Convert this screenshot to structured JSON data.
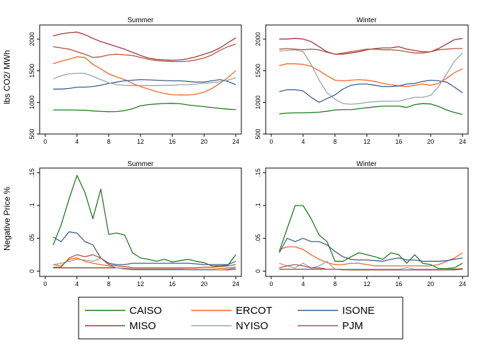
{
  "figure": {
    "legend_entries": [
      {
        "name": "CAISO",
        "color": "#1e7a1e"
      },
      {
        "name": "ERCOT",
        "color": "#f26522"
      },
      {
        "name": "ISONE",
        "color": "#3b5f8c"
      },
      {
        "name": "MISO",
        "color": "#9c3a3a"
      },
      {
        "name": "NYISO",
        "color": "#95a5a6"
      },
      {
        "name": "PJM",
        "color": "#b5523b"
      }
    ],
    "legend_placement": "bottom"
  },
  "chart_data": [
    {
      "type": "line",
      "title": "Summer",
      "ylabel": "lbs CO2/ MWh",
      "xlim": [
        0,
        24
      ],
      "ylim": [
        500,
        2200
      ],
      "xticks": [
        0,
        4,
        8,
        12,
        16,
        20,
        24
      ],
      "yticks": [
        500,
        1000,
        1500,
        2000
      ],
      "x": [
        1,
        2,
        3,
        4,
        5,
        6,
        7,
        8,
        9,
        10,
        11,
        12,
        13,
        14,
        15,
        16,
        17,
        18,
        19,
        20,
        21,
        22,
        23,
        24
      ],
      "series": [
        {
          "name": "CAISO",
          "color": "#1e7a1e",
          "values": [
            880,
            880,
            880,
            878,
            875,
            865,
            858,
            853,
            855,
            868,
            900,
            945,
            965,
            975,
            983,
            985,
            978,
            960,
            945,
            933,
            918,
            905,
            893,
            885
          ]
        },
        {
          "name": "ERCOT",
          "color": "#f26522",
          "values": [
            1610,
            1650,
            1680,
            1720,
            1710,
            1600,
            1530,
            1450,
            1400,
            1360,
            1300,
            1250,
            1210,
            1170,
            1140,
            1120,
            1118,
            1115,
            1130,
            1160,
            1220,
            1300,
            1390,
            1500
          ]
        },
        {
          "name": "ISONE",
          "color": "#3b5f8c",
          "values": [
            1210,
            1210,
            1220,
            1240,
            1240,
            1250,
            1270,
            1300,
            1320,
            1340,
            1350,
            1360,
            1355,
            1350,
            1345,
            1340,
            1340,
            1330,
            1320,
            1320,
            1340,
            1360,
            1330,
            1280
          ]
        },
        {
          "name": "MISO",
          "color": "#9c3a3a",
          "values": [
            2050,
            2080,
            2100,
            2110,
            2070,
            2010,
            1960,
            1920,
            1880,
            1840,
            1790,
            1740,
            1700,
            1680,
            1670,
            1665,
            1670,
            1690,
            1720,
            1760,
            1800,
            1860,
            1940,
            2020
          ]
        },
        {
          "name": "NYISO",
          "color": "#95a5a6",
          "values": [
            1370,
            1420,
            1450,
            1460,
            1460,
            1410,
            1360,
            1310,
            1280,
            1270,
            1265,
            1265,
            1265,
            1265,
            1270,
            1270,
            1280,
            1280,
            1290,
            1300,
            1310,
            1325,
            1350,
            1390
          ]
        },
        {
          "name": "PJM",
          "color": "#b5523b",
          "values": [
            1880,
            1860,
            1840,
            1800,
            1760,
            1710,
            1720,
            1750,
            1760,
            1750,
            1740,
            1710,
            1680,
            1660,
            1650,
            1645,
            1645,
            1650,
            1670,
            1700,
            1750,
            1820,
            1880,
            1920
          ]
        }
      ]
    },
    {
      "type": "line",
      "title": "Winter",
      "ylabel": "",
      "xlim": [
        0,
        24
      ],
      "ylim": [
        500,
        2200
      ],
      "xticks": [
        0,
        4,
        8,
        12,
        16,
        20,
        24
      ],
      "yticks": [
        500,
        1000,
        1500,
        2000
      ],
      "x": [
        1,
        2,
        3,
        4,
        5,
        6,
        7,
        8,
        9,
        10,
        11,
        12,
        13,
        14,
        15,
        16,
        17,
        18,
        19,
        20,
        21,
        22,
        23,
        24
      ],
      "series": [
        {
          "name": "CAISO",
          "color": "#1e7a1e",
          "values": [
            820,
            830,
            835,
            835,
            838,
            845,
            860,
            880,
            885,
            885,
            900,
            915,
            930,
            940,
            940,
            940,
            920,
            965,
            980,
            975,
            935,
            880,
            840,
            810
          ]
        },
        {
          "name": "ERCOT",
          "color": "#f26522",
          "values": [
            1580,
            1610,
            1610,
            1600,
            1570,
            1500,
            1420,
            1350,
            1340,
            1350,
            1360,
            1350,
            1330,
            1300,
            1280,
            1260,
            1250,
            1270,
            1290,
            1270,
            1300,
            1380,
            1470,
            1530
          ]
        },
        {
          "name": "ISONE",
          "color": "#3b5f8c",
          "values": [
            1170,
            1200,
            1200,
            1180,
            1080,
            1000,
            1060,
            1120,
            1210,
            1270,
            1290,
            1290,
            1270,
            1250,
            1250,
            1260,
            1290,
            1300,
            1330,
            1350,
            1340,
            1320,
            1240,
            1150
          ]
        },
        {
          "name": "MISO",
          "color": "#9c3a3a",
          "values": [
            2000,
            2000,
            2010,
            2000,
            1960,
            1880,
            1800,
            1760,
            1760,
            1780,
            1800,
            1830,
            1850,
            1860,
            1860,
            1880,
            1840,
            1820,
            1800,
            1800,
            1850,
            1920,
            1990,
            2010
          ]
        },
        {
          "name": "NYISO",
          "color": "#95a5a6",
          "values": [
            1810,
            1820,
            1830,
            1800,
            1600,
            1350,
            1150,
            1050,
            980,
            970,
            980,
            1000,
            1010,
            1020,
            1020,
            1020,
            1050,
            1080,
            1080,
            1110,
            1250,
            1450,
            1650,
            1780
          ]
        },
        {
          "name": "PJM",
          "color": "#b5523b",
          "values": [
            1840,
            1850,
            1840,
            1830,
            1840,
            1830,
            1790,
            1760,
            1780,
            1800,
            1820,
            1840,
            1840,
            1830,
            1830,
            1820,
            1800,
            1780,
            1780,
            1800,
            1830,
            1840,
            1850,
            1850
          ]
        }
      ]
    },
    {
      "type": "line",
      "title": "Summer",
      "ylabel": "Negative Price %",
      "xlim": [
        0,
        24
      ],
      "ylim": [
        -0.008,
        0.155
      ],
      "xticks": [
        0,
        4,
        8,
        12,
        16,
        20,
        24
      ],
      "yticks": [
        0,
        0.05,
        0.1,
        0.15
      ],
      "ytick_labels": [
        "0",
        ".05",
        ".1",
        ".15"
      ],
      "x": [
        1,
        2,
        3,
        4,
        5,
        6,
        7,
        8,
        9,
        10,
        11,
        12,
        13,
        14,
        15,
        16,
        17,
        18,
        19,
        20,
        21,
        22,
        23,
        24
      ],
      "series": [
        {
          "name": "CAISO",
          "color": "#1e7a1e",
          "values": [
            0.04,
            0.07,
            0.11,
            0.146,
            0.12,
            0.08,
            0.125,
            0.056,
            0.058,
            0.055,
            0.028,
            0.02,
            0.018,
            0.015,
            0.018,
            0.014,
            0.016,
            0.018,
            0.015,
            0.013,
            0.008,
            0.008,
            0.009,
            0.025
          ]
        },
        {
          "name": "ERCOT",
          "color": "#f26522",
          "values": [
            0.01,
            0.008,
            0.018,
            0.02,
            0.015,
            0.012,
            0.01,
            0.008,
            0.005,
            0.004,
            0.003,
            0.003,
            0.003,
            0.003,
            0.003,
            0.003,
            0.003,
            0.003,
            0.003,
            0.003,
            0.003,
            0.004,
            0.005,
            0.006
          ]
        },
        {
          "name": "ISONE",
          "color": "#3b5f8c",
          "values": [
            0.052,
            0.045,
            0.06,
            0.058,
            0.045,
            0.04,
            0.02,
            0.012,
            0.01,
            0.01,
            0.012,
            0.012,
            0.012,
            0.012,
            0.012,
            0.012,
            0.012,
            0.012,
            0.011,
            0.01,
            0.01,
            0.01,
            0.01,
            0.015
          ]
        },
        {
          "name": "MISO",
          "color": "#9c3a3a",
          "values": [
            0.005,
            0.005,
            0.005,
            0.005,
            0.005,
            0.005,
            0.005,
            0.005,
            0.005,
            0.004,
            0.003,
            0.003,
            0.003,
            0.003,
            0.003,
            0.003,
            0.003,
            0.002,
            0.002,
            0.002,
            0.002,
            0.002,
            0.002,
            0.003
          ]
        },
        {
          "name": "NYISO",
          "color": "#95a5a6",
          "values": [
            0.01,
            0.012,
            0.015,
            0.018,
            0.017,
            0.015,
            0.02,
            0.01,
            0.005,
            0.003,
            0.002,
            0.002,
            0.002,
            0.002,
            0.002,
            0.002,
            0.002,
            0.002,
            0.002,
            0.002,
            0.002,
            0.002,
            0.003,
            0.005
          ]
        },
        {
          "name": "PJM",
          "color": "#b5523b",
          "values": [
            0.006,
            0.006,
            0.02,
            0.025,
            0.022,
            0.025,
            0.02,
            0.01,
            0.008,
            0.007,
            0.005,
            0.005,
            0.005,
            0.005,
            0.005,
            0.005,
            0.005,
            0.005,
            0.005,
            0.006,
            0.006,
            0.007,
            0.008,
            0.01
          ]
        }
      ]
    },
    {
      "type": "line",
      "title": "Winter",
      "ylabel": "",
      "xlim": [
        0,
        24
      ],
      "ylim": [
        -0.008,
        0.155
      ],
      "xticks": [
        0,
        4,
        8,
        12,
        16,
        20,
        24
      ],
      "yticks": [
        0,
        0.05,
        0.1,
        0.15
      ],
      "ytick_labels": [
        "0",
        ".05",
        ".1",
        ".15"
      ],
      "x": [
        1,
        2,
        3,
        4,
        5,
        6,
        7,
        8,
        9,
        10,
        11,
        12,
        13,
        14,
        15,
        16,
        17,
        18,
        19,
        20,
        21,
        22,
        23,
        24
      ],
      "series": [
        {
          "name": "CAISO",
          "color": "#1e7a1e",
          "values": [
            0.03,
            0.065,
            0.1,
            0.1,
            0.08,
            0.055,
            0.045,
            0.015,
            0.015,
            0.022,
            0.028,
            0.025,
            0.022,
            0.018,
            0.028,
            0.025,
            0.012,
            0.025,
            0.012,
            0.01,
            0.004,
            0.004,
            0.005,
            0.012
          ]
        },
        {
          "name": "ERCOT",
          "color": "#f26522",
          "values": [
            0.033,
            0.037,
            0.037,
            0.033,
            0.025,
            0.018,
            0.013,
            0.01,
            0.01,
            0.012,
            0.012,
            0.01,
            0.008,
            0.008,
            0.008,
            0.008,
            0.008,
            0.008,
            0.008,
            0.008,
            0.01,
            0.015,
            0.02,
            0.028
          ]
        },
        {
          "name": "ISONE",
          "color": "#3b5f8c",
          "values": [
            0.028,
            0.05,
            0.045,
            0.05,
            0.045,
            0.045,
            0.04,
            0.03,
            0.022,
            0.018,
            0.017,
            0.017,
            0.016,
            0.015,
            0.018,
            0.02,
            0.017,
            0.017,
            0.015,
            0.015,
            0.015,
            0.016,
            0.018,
            0.02
          ]
        },
        {
          "name": "MISO",
          "color": "#9c3a3a",
          "values": [
            0.003,
            0.003,
            0.003,
            0.003,
            0.003,
            0.003,
            0.003,
            0.003,
            0.003,
            0.002,
            0.002,
            0.002,
            0.002,
            0.002,
            0.002,
            0.002,
            0.002,
            0.002,
            0.002,
            0.002,
            0.002,
            0.002,
            0.002,
            0.003
          ]
        },
        {
          "name": "NYISO",
          "color": "#95a5a6",
          "values": [
            0.012,
            0.008,
            0.005,
            0.012,
            0.005,
            0.008,
            0.015,
            0.003,
            0.003,
            0.003,
            0.003,
            0.003,
            0.003,
            0.003,
            0.003,
            0.003,
            0.005,
            0.003,
            0.003,
            0.003,
            0.003,
            0.003,
            0.003,
            0.004
          ]
        },
        {
          "name": "PJM",
          "color": "#b5523b",
          "values": [
            0.005,
            0.008,
            0.01,
            0.008,
            0.005,
            0.005,
            0.003,
            0.003,
            0.002,
            0.002,
            0.002,
            0.002,
            0.002,
            0.002,
            0.002,
            0.002,
            0.002,
            0.002,
            0.002,
            0.002,
            0.002,
            0.002,
            0.003,
            0.004
          ]
        }
      ]
    }
  ]
}
